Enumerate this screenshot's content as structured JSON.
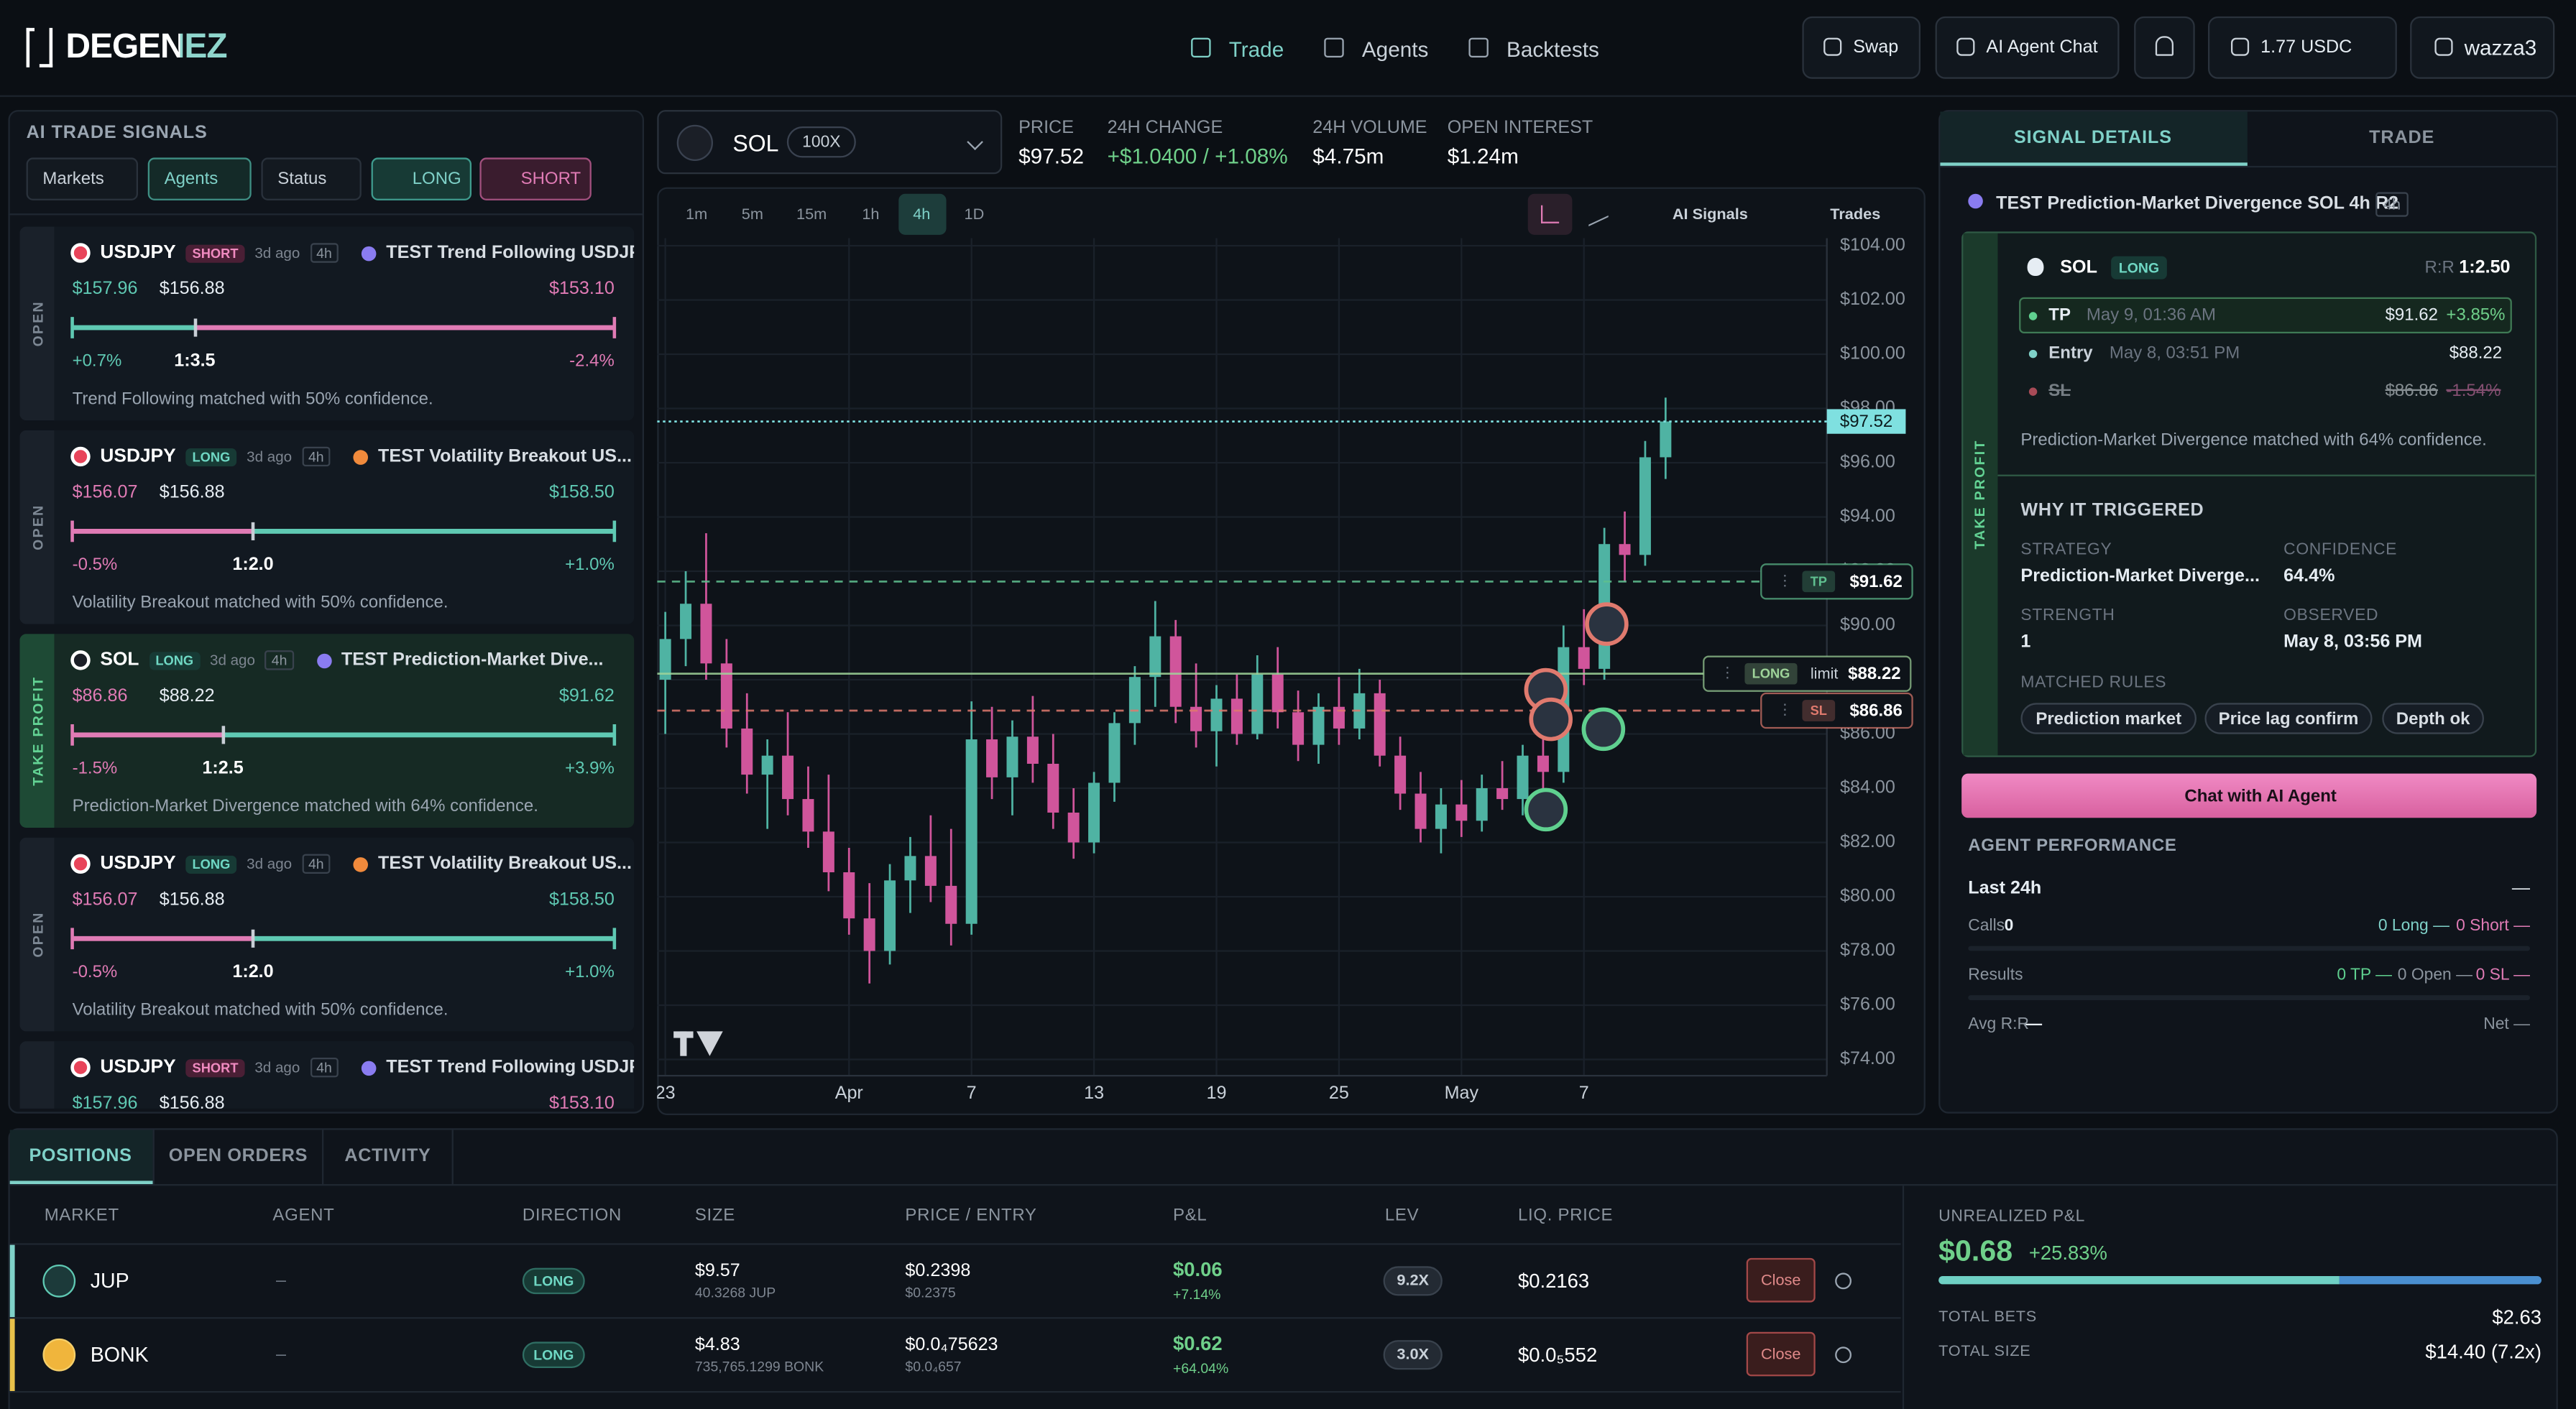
{
  "header": {
    "logo": "DEGENEZ",
    "nav": [
      "Trade",
      "Agents",
      "Backtests"
    ],
    "buttons": [
      "Swap",
      "AI Agent Chat"
    ],
    "balance": "1.77 USDC",
    "user": "wazza3"
  },
  "signals": {
    "title": "AI TRADE SIGNALS",
    "filters": [
      "Markets",
      "Agents",
      "Status"
    ],
    "long": "LONG",
    "short": "SHORT",
    "cards": [
      {
        "status": "OPEN",
        "market": "USDJPY",
        "side": "SHORT",
        "age": "3d ago",
        "tf": "4h",
        "name": "TEST Trend Following USDJP...",
        "prices": [
          "$157.96",
          "$156.88",
          "$153.10"
        ],
        "pct_left": "+0.7%",
        "rr": "1:3.5",
        "pct_right": "-2.4%",
        "note": "Trend Following matched with 50% confidence."
      },
      {
        "status": "OPEN",
        "market": "USDJPY",
        "side": "LONG",
        "age": "3d ago",
        "tf": "4h",
        "name": "TEST Volatility Breakout US...",
        "prices": [
          "$156.07",
          "$156.88",
          "$158.50"
        ],
        "pct_left": "-0.5%",
        "rr": "1:2.0",
        "pct_right": "+1.0%",
        "note": "Volatility Breakout matched with 50% confidence."
      },
      {
        "status": "TAKE PROFIT",
        "market": "SOL",
        "side": "LONG",
        "age": "3d ago",
        "tf": "4h",
        "name": "TEST Prediction-Market Dive...",
        "prices": [
          "$86.86",
          "$88.22",
          "$91.62"
        ],
        "pct_left": "-1.5%",
        "rr": "1:2.5",
        "pct_right": "+3.9%",
        "note": "Prediction-Market Divergence matched with 64% confidence."
      },
      {
        "status": "OPEN",
        "market": "USDJPY",
        "side": "LONG",
        "age": "3d ago",
        "tf": "4h",
        "name": "TEST Volatility Breakout US...",
        "prices": [
          "$156.07",
          "$156.88",
          "$158.50"
        ],
        "pct_left": "-0.5%",
        "rr": "1:2.0",
        "pct_right": "+1.0%",
        "note": "Volatility Breakout matched with 50% confidence."
      },
      {
        "market": "USDJPY",
        "side": "SHORT",
        "age": "3d ago",
        "tf": "4h",
        "name": "TEST Trend Following USDJP...",
        "prices": [
          "$157.96",
          "$156.88",
          "$153.10"
        ]
      }
    ]
  },
  "market": {
    "symbol": "SOL",
    "leverage": "100X",
    "stats": [
      {
        "label": "PRICE",
        "value": "$97.52"
      },
      {
        "label": "24H CHANGE",
        "value": "+$1.0400 / +1.08%"
      },
      {
        "label": "24H VOLUME",
        "value": "$4.75m"
      },
      {
        "label": "OPEN INTEREST",
        "value": "$1.24m"
      }
    ],
    "timeframes": [
      "1m",
      "5m",
      "15m",
      "1h",
      "4h",
      "1D"
    ],
    "tools": [
      "AI Signals",
      "Trades"
    ]
  },
  "chart_data": {
    "type": "candlestick",
    "x": [
      0,
      1,
      2,
      3,
      4,
      5,
      6,
      7,
      8,
      9,
      10,
      11,
      12,
      13,
      14,
      15,
      16,
      17,
      18,
      19,
      20,
      21,
      22,
      23,
      24,
      25,
      26,
      27,
      28,
      29,
      30,
      31,
      32,
      33,
      34,
      35,
      36,
      37,
      38,
      39,
      40,
      41,
      42,
      43,
      44,
      45,
      46,
      47,
      48,
      49
    ],
    "open": [
      88,
      89.5,
      90.8,
      88.6,
      86.2,
      84.5,
      85.2,
      83.6,
      82.4,
      80.9,
      79.2,
      78,
      80.6,
      81.5,
      80.4,
      79,
      85.8,
      84.4,
      85.9,
      84.9,
      83.1,
      82,
      84.2,
      86.4,
      88.1,
      89.6,
      87,
      86.1,
      87.3,
      86,
      88.2,
      86.8,
      85.6,
      87,
      86.2,
      87.5,
      85.2,
      83.8,
      82.5,
      83.4,
      82.8,
      84,
      83.6,
      85.2,
      84.6,
      89.2,
      88.4,
      93,
      92.6,
      96.2
    ],
    "high": [
      90.5,
      92,
      93.4,
      89.5,
      87.5,
      85.8,
      86.8,
      84.8,
      84.5,
      81.8,
      80.5,
      81.2,
      82.2,
      83,
      82.5,
      87.2,
      87,
      86.5,
      87.4,
      86,
      84,
      84.6,
      86.8,
      88.5,
      90.9,
      90.2,
      88.6,
      87.8,
      88.2,
      88.9,
      89.2,
      87.6,
      87.5,
      88.1,
      88.4,
      88,
      85.9,
      84.6,
      84,
      84.3,
      84.5,
      85,
      85.6,
      86.4,
      90,
      90.6,
      93.6,
      94.2,
      96.8,
      98.4
    ],
    "low": [
      86,
      88.5,
      88,
      85.5,
      83.8,
      82.5,
      83,
      81.8,
      80.2,
      78.6,
      76.8,
      77.5,
      79.4,
      79.8,
      78.2,
      78.6,
      83.6,
      83,
      84.2,
      82.5,
      81.4,
      81.6,
      83.5,
      85.6,
      87,
      86.4,
      85.5,
      84.8,
      85.6,
      85.8,
      86.2,
      85,
      84.9,
      85.6,
      85.8,
      84.8,
      83.2,
      82,
      81.6,
      82.2,
      82.4,
      83.2,
      83,
      84,
      84.2,
      87.8,
      88,
      91.6,
      92.2,
      95.4
    ],
    "close": [
      89.5,
      90.8,
      88.6,
      86.2,
      84.5,
      85.2,
      83.6,
      82.4,
      80.9,
      79.2,
      78,
      80.6,
      81.5,
      80.4,
      79,
      85.8,
      84.4,
      85.9,
      84.9,
      83.1,
      82,
      84.2,
      86.4,
      88.1,
      89.6,
      87,
      86.1,
      87.3,
      86,
      88.2,
      86.8,
      85.6,
      87,
      86.2,
      87.5,
      85.2,
      83.8,
      82.5,
      83.4,
      82.8,
      84,
      83.6,
      85.2,
      84.6,
      89.2,
      88.4,
      93,
      92.6,
      96.2,
      97.52
    ],
    "up_color": "#4fb3a3",
    "down_color": "#d0559b",
    "xlim": [
      -0.4,
      56.9
    ],
    "xticks": [
      {
        "value": 0,
        "label": "23"
      },
      {
        "value": 9,
        "label": "Apr"
      },
      {
        "value": 15,
        "label": "7"
      },
      {
        "value": 21,
        "label": "13"
      },
      {
        "value": 27,
        "label": "19"
      },
      {
        "value": 33,
        "label": "25"
      },
      {
        "value": 39,
        "label": "May"
      },
      {
        "value": 45,
        "label": "7"
      }
    ],
    "ylim": [
      73.4,
      104.4
    ],
    "yticks": [
      {
        "value": 74,
        "label": "$74.00"
      },
      {
        "value": 76,
        "label": "$76.00"
      },
      {
        "value": 78,
        "label": "$78.00"
      },
      {
        "value": 80,
        "label": "$80.00"
      },
      {
        "value": 82,
        "label": "$82.00"
      },
      {
        "value": 84,
        "label": "$84.00"
      },
      {
        "value": 86,
        "label": "$86.00"
      },
      {
        "value": 88,
        "label": "$88.00"
      },
      {
        "value": 90,
        "label": "$90.00"
      },
      {
        "value": 92,
        "label": "$92.00"
      },
      {
        "value": 94,
        "label": "$94.00"
      },
      {
        "value": 96,
        "label": "$96.00"
      },
      {
        "value": 98,
        "label": "$98.00"
      },
      {
        "value": 100,
        "label": "$100.00"
      },
      {
        "value": 102,
        "label": "$102.00"
      },
      {
        "value": 104,
        "label": "$104.00"
      }
    ],
    "grid": true,
    "levels": [
      {
        "name": "TP",
        "value": 91.62,
        "label": "$91.62",
        "color": "#5fbf8f"
      },
      {
        "name": "LONG",
        "tag": "limit",
        "value": 88.22,
        "label": "$88.22",
        "color": "#9fd49a"
      },
      {
        "name": "SL",
        "value": 86.86,
        "label": "$86.86",
        "color": "#e07a6e"
      }
    ],
    "last": {
      "value": 97.52,
      "label": "$97.52",
      "color": "#7fe0e0"
    }
  },
  "details": {
    "tabs": [
      "SIGNAL DETAILS",
      "TRADE"
    ],
    "title": "TEST Prediction-Market Divergence SOL 4h R2",
    "tf": "4h",
    "status": "TAKE PROFIT",
    "symbol": "SOL",
    "side": "LONG",
    "rr_label": "R:R",
    "rr": "1:2.50",
    "levels": [
      {
        "name": "TP",
        "time": "May 9, 01:36 AM",
        "price": "$91.62",
        "pct": "+3.85%"
      },
      {
        "name": "Entry",
        "time": "May 8, 03:51 PM",
        "price": "$88.22"
      },
      {
        "name": "SL",
        "price": "$86.86",
        "pct": "-1.54%"
      }
    ],
    "note": "Prediction-Market Divergence matched with 64% confidence.",
    "why": "WHY IT TRIGGERED",
    "fields": [
      {
        "label": "STRATEGY",
        "value": "Prediction-Market Diverge..."
      },
      {
        "label": "CONFIDENCE",
        "value": "64.4%"
      },
      {
        "label": "STRENGTH",
        "value": "1"
      },
      {
        "label": "OBSERVED",
        "value": "May 8, 03:56 PM"
      }
    ],
    "rules_title": "MATCHED RULES",
    "rules": [
      "Prediction market",
      "Price lag confirm",
      "Depth ok"
    ],
    "chat": "Chat with AI Agent"
  },
  "performance": {
    "title": "AGENT PERFORMANCE",
    "period": "Last 24h",
    "toggle": "—",
    "rows": [
      {
        "label": "Calls",
        "value": "0",
        "stats": [
          "0 Long —",
          "0 Short —"
        ]
      },
      {
        "label": "Results",
        "stats": [
          "0 TP —",
          "0 Open —",
          "0 SL —"
        ]
      },
      {
        "label": "Avg R:R",
        "value": "—",
        "stats": [
          "Net —"
        ]
      }
    ]
  },
  "positions": {
    "tabs": [
      "POSITIONS",
      "OPEN ORDERS",
      "ACTIVITY"
    ],
    "columns": [
      "MARKET",
      "AGENT",
      "DIRECTION",
      "SIZE",
      "PRICE / ENTRY",
      "P&L",
      "LEV",
      "LIQ. PRICE"
    ],
    "rows": [
      {
        "market": "JUP",
        "agent": "–",
        "direction": "LONG",
        "size": "$9.57",
        "size_sub": "40.3268 JUP",
        "price": "$0.2398",
        "entry": "$0.2375",
        "pnl": "$0.06",
        "pnl_pct": "+7.14%",
        "lev": "9.2X",
        "liq": "$0.2163",
        "action": "Close"
      },
      {
        "market": "BONK",
        "agent": "–",
        "direction": "LONG",
        "size": "$4.83",
        "size_sub": "735,765.1299 BONK",
        "price": "$0.0₄75623",
        "entry": "$0.0₄657",
        "pnl": "$0.62",
        "pnl_pct": "+64.04%",
        "lev": "3.0X",
        "liq": "$0.0₅552",
        "action": "Close"
      }
    ],
    "summary": {
      "label": "UNREALIZED P&L",
      "value": "$0.68",
      "pct": "+25.83%",
      "rows": [
        {
          "label": "TOTAL BETS",
          "value": "$2.63"
        },
        {
          "label": "TOTAL SIZE",
          "value": "$14.40 (7.2x)"
        }
      ]
    }
  }
}
